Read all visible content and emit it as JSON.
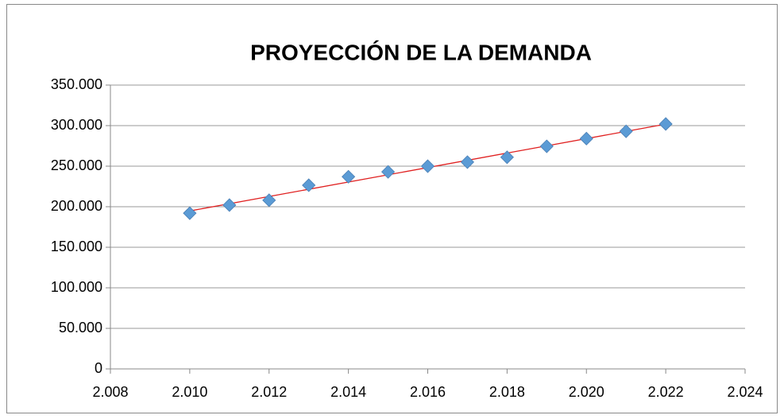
{
  "chart_data": {
    "type": "scatter",
    "title": "PROYECCIÓN DE LA DEMANDA",
    "series": [
      {
        "color": "#5b9bd5",
        "x": [
          2010,
          2011,
          2012,
          2013,
          2014,
          2015,
          2016,
          2017,
          2018,
          2019,
          2020,
          2021,
          2022
        ],
        "values": [
          192000,
          202000,
          208000,
          226500,
          237000,
          243000,
          250000,
          255000,
          261000,
          274500,
          284000,
          293000,
          302000
        ]
      }
    ],
    "trendline": "linear",
    "trendline_color": "#e02020",
    "xlim": [
      2008,
      2024
    ],
    "xticks": [
      {
        "value": 2008,
        "label": "2.008"
      },
      {
        "value": 2010,
        "label": "2.010"
      },
      {
        "value": 2012,
        "label": "2.012"
      },
      {
        "value": 2014,
        "label": "2.014"
      },
      {
        "value": 2016,
        "label": "2.016"
      },
      {
        "value": 2018,
        "label": "2.018"
      },
      {
        "value": 2020,
        "label": "2.020"
      },
      {
        "value": 2022,
        "label": "2.022"
      },
      {
        "value": 2024,
        "label": "2.024"
      }
    ],
    "ylim": [
      0,
      350000
    ],
    "yticks": [
      0,
      {
        "value": 50000,
        "label": "50.000"
      },
      {
        "value": 100000,
        "label": "100.000"
      },
      {
        "value": 150000,
        "label": "150.000"
      },
      {
        "value": 200000,
        "label": "200.000"
      },
      {
        "value": 250000,
        "label": "250.000"
      },
      {
        "value": 300000,
        "label": "300.000"
      },
      {
        "value": 350000,
        "label": "350.000"
      }
    ],
    "grid": true
  }
}
